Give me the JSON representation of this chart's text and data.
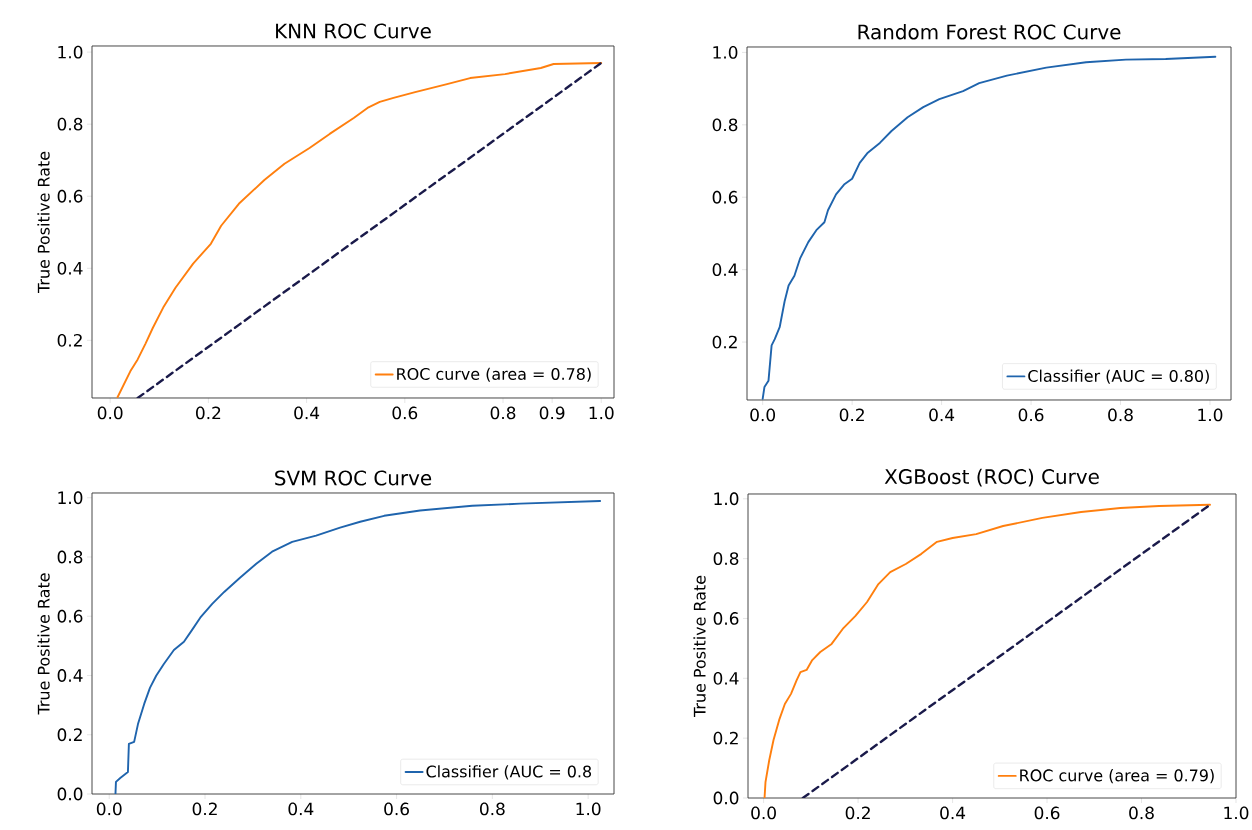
{
  "chart_data": [
    {
      "type": "line",
      "title": "KNN   ROC Curve",
      "ylabel": "True Positive Rate",
      "legend": "bottom right",
      "xlim": [
        -0.037,
        1.026
      ],
      "ylim": [
        0.04,
        1.017
      ],
      "xticks": [
        {
          "value": 0,
          "label": "0.0"
        },
        {
          "value": 0.2,
          "label": "0.2"
        },
        {
          "value": 0.4,
          "label": "0.4"
        },
        {
          "value": 0.6,
          "label": "0.6"
        },
        {
          "value": 0.8,
          "label": "0.8"
        },
        {
          "value": 0.9,
          "label": "0.9"
        },
        {
          "value": 1.0,
          "label": "1.0"
        }
      ],
      "yticks": [
        {
          "value": 0.2,
          "label": "0.2"
        },
        {
          "value": 0.4,
          "label": "0.4"
        },
        {
          "value": 0.6,
          "label": "0.6"
        },
        {
          "value": 0.8,
          "label": "0.8"
        },
        {
          "value": 1.0,
          "label": "1.0"
        }
      ],
      "series": [
        {
          "name": "ROC curve (area = 0.78)",
          "color": "#ff7f0e",
          "line_style": "solid",
          "x": [
            0.015,
            0.041,
            0.056,
            0.072,
            0.087,
            0.108,
            0.133,
            0.169,
            0.205,
            0.226,
            0.262,
            0.314,
            0.355,
            0.406,
            0.447,
            0.496,
            0.524,
            0.549,
            0.577,
            0.621,
            0.686,
            0.733,
            0.804,
            0.877,
            0.903,
            1.0
          ],
          "values": [
            0.042,
            0.114,
            0.147,
            0.191,
            0.235,
            0.291,
            0.346,
            0.413,
            0.468,
            0.518,
            0.579,
            0.645,
            0.69,
            0.734,
            0.773,
            0.817,
            0.845,
            0.862,
            0.873,
            0.889,
            0.911,
            0.928,
            0.939,
            0.956,
            0.967,
            0.97
          ]
        },
        {
          "color": "#1a1a4a",
          "line_style": "dashed",
          "x": [
            0.056,
            1.0
          ],
          "values": [
            0.04,
            0.97
          ]
        }
      ]
    },
    {
      "type": "line",
      "title": "Random Forest ROC Curve",
      "legend": "bottom right",
      "xlim": [
        -0.035,
        1.047
      ],
      "ylim": [
        0.04,
        1.015
      ],
      "xticks": [
        {
          "value": 0,
          "label": "0.0"
        },
        {
          "value": 0.2,
          "label": "0.2"
        },
        {
          "value": 0.4,
          "label": "0.4"
        },
        {
          "value": 0.6,
          "label": "0.6"
        },
        {
          "value": 0.8,
          "label": "0.8"
        },
        {
          "value": 1.0,
          "label": "1.0"
        }
      ],
      "yticks": [
        {
          "value": 0.2,
          "label": "0.2"
        },
        {
          "value": 0.4,
          "label": "0.4"
        },
        {
          "value": 0.6,
          "label": "0.6"
        },
        {
          "value": 0.8,
          "label": "0.8"
        },
        {
          "value": 1.0,
          "label": "1.0"
        }
      ],
      "series": [
        {
          "name": "Classifier (AUC = 0.80)",
          "color": "#1f64ad",
          "line_style": "solid",
          "x": [
            0.0,
            0.004,
            0.013,
            0.02,
            0.027,
            0.038,
            0.049,
            0.058,
            0.071,
            0.084,
            0.102,
            0.12,
            0.138,
            0.146,
            0.164,
            0.182,
            0.2,
            0.217,
            0.235,
            0.262,
            0.288,
            0.324,
            0.359,
            0.395,
            0.448,
            0.484,
            0.546,
            0.634,
            0.723,
            0.812,
            0.901,
            1.012
          ],
          "values": [
            0.043,
            0.076,
            0.093,
            0.191,
            0.208,
            0.241,
            0.312,
            0.356,
            0.383,
            0.432,
            0.476,
            0.509,
            0.531,
            0.564,
            0.608,
            0.635,
            0.651,
            0.695,
            0.723,
            0.75,
            0.783,
            0.821,
            0.849,
            0.871,
            0.893,
            0.915,
            0.936,
            0.958,
            0.973,
            0.98,
            0.982,
            0.988
          ]
        }
      ]
    },
    {
      "type": "line",
      "title": "SVM ROC  Curve",
      "ylabel": "True Positive Rate",
      "legend": "bottom right",
      "xlim": [
        -0.036,
        1.054
      ],
      "ylim": [
        0,
        1.016
      ],
      "xticks": [
        {
          "value": 0,
          "label": "0.0"
        },
        {
          "value": 0.2,
          "label": "0.2"
        },
        {
          "value": 0.4,
          "label": "0.4"
        },
        {
          "value": 0.6,
          "label": "0.6"
        },
        {
          "value": 0.8,
          "label": "0.8"
        },
        {
          "value": 1.0,
          "label": "1.0"
        }
      ],
      "yticks": [
        {
          "value": 0,
          "label": "0.0"
        },
        {
          "value": 0.2,
          "label": "0.2"
        },
        {
          "value": 0.4,
          "label": "0.4"
        },
        {
          "value": 0.6,
          "label": "0.6"
        },
        {
          "value": 0.8,
          "label": "0.8"
        },
        {
          "value": 1.0,
          "label": "1.0"
        }
      ],
      "series": [
        {
          "name": "Classifier (AUC = 0.8",
          "color": "#1f64ad",
          "line_style": "solid",
          "x": [
            0.013,
            0.014,
            0.023,
            0.039,
            0.041,
            0.052,
            0.06,
            0.073,
            0.085,
            0.098,
            0.114,
            0.135,
            0.156,
            0.173,
            0.19,
            0.215,
            0.24,
            0.273,
            0.307,
            0.34,
            0.382,
            0.432,
            0.482,
            0.524,
            0.574,
            0.649,
            0.758,
            0.858,
            1.025
          ],
          "values": [
            0,
            0.041,
            0.054,
            0.074,
            0.169,
            0.176,
            0.236,
            0.304,
            0.358,
            0.399,
            0.439,
            0.486,
            0.514,
            0.554,
            0.595,
            0.642,
            0.682,
            0.73,
            0.777,
            0.818,
            0.851,
            0.872,
            0.899,
            0.919,
            0.939,
            0.957,
            0.973,
            0.98,
            0.989
          ]
        }
      ]
    },
    {
      "type": "line",
      "title": "XGBoost (ROC) Curve",
      "ylabel": "True Positive Rate",
      "legend": "bottom right",
      "xlim": [
        -0.033,
        1.0
      ],
      "ylim": [
        0,
        1.016
      ],
      "xticks": [
        {
          "value": 0,
          "label": "0.0"
        },
        {
          "value": 0.2,
          "label": "0.2"
        },
        {
          "value": 0.4,
          "label": "0.4"
        },
        {
          "value": 0.6,
          "label": "0.6"
        },
        {
          "value": 0.8,
          "label": "0.8"
        },
        {
          "value": 1.0,
          "label": "1.0"
        }
      ],
      "yticks": [
        {
          "value": 0,
          "label": "0.0"
        },
        {
          "value": 0.2,
          "label": "0.2"
        },
        {
          "value": 0.4,
          "label": "0.4"
        },
        {
          "value": 0.6,
          "label": "0.6"
        },
        {
          "value": 0.8,
          "label": "0.8"
        },
        {
          "value": 1.0,
          "label": "1.0"
        }
      ],
      "series": [
        {
          "name": "ROC curve (area = 0.79)",
          "color": "#ff7f0e",
          "line_style": "solid",
          "x": [
            0.002,
            0.004,
            0.012,
            0.021,
            0.033,
            0.045,
            0.058,
            0.07,
            0.078,
            0.091,
            0.103,
            0.12,
            0.144,
            0.169,
            0.194,
            0.219,
            0.243,
            0.268,
            0.301,
            0.334,
            0.367,
            0.4,
            0.45,
            0.507,
            0.59,
            0.672,
            0.755,
            0.837,
            0.945
          ],
          "values": [
            0,
            0.053,
            0.127,
            0.194,
            0.261,
            0.314,
            0.348,
            0.394,
            0.421,
            0.428,
            0.461,
            0.488,
            0.515,
            0.568,
            0.608,
            0.655,
            0.715,
            0.755,
            0.782,
            0.816,
            0.856,
            0.869,
            0.882,
            0.909,
            0.936,
            0.956,
            0.969,
            0.976,
            0.98
          ]
        },
        {
          "color": "#1a1a4a",
          "line_style": "dashed",
          "x": [
            0.083,
            0.945
          ],
          "values": [
            0,
            0.98
          ]
        }
      ]
    }
  ]
}
